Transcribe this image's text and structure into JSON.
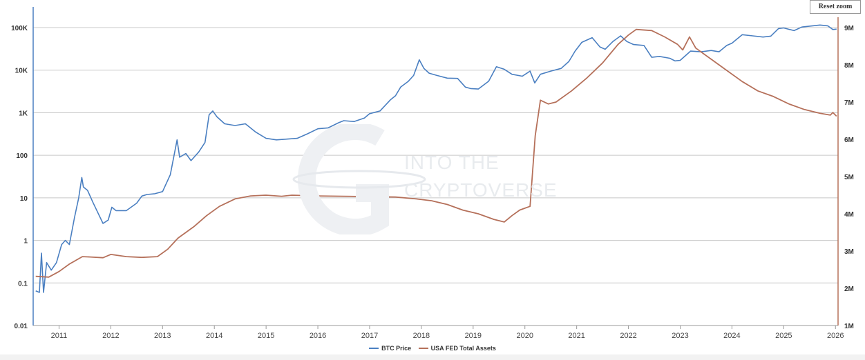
{
  "ui": {
    "reset_zoom_label": "Reset zoom",
    "watermark_line1": "INTO THE",
    "watermark_line2": "CRYPTOVERSE"
  },
  "chart_data": {
    "type": "line",
    "title": "",
    "x_ticks": [
      "2011",
      "2012",
      "2013",
      "2014",
      "2015",
      "2016",
      "2017",
      "2018",
      "2019",
      "2020",
      "2021",
      "2022",
      "2023",
      "2024",
      "2025",
      "2026"
    ],
    "left_axis": {
      "scale": "log",
      "ticks": [
        "0.01",
        "0.1",
        "1",
        "10",
        "100",
        "1K",
        "10K",
        "100K"
      ],
      "ylim": [
        0.01,
        100000
      ]
    },
    "right_axis": {
      "scale": "linear",
      "unit": "M",
      "ticks": [
        "1M",
        "2M",
        "3M",
        "4M",
        "5M",
        "6M",
        "7M",
        "8M",
        "9M"
      ],
      "ylim": [
        1000000,
        9000000
      ]
    },
    "grid": true,
    "legend_position": "bottom-center",
    "colors": {
      "btc": "#4a7fc1",
      "fed": "#b5705a"
    },
    "series": [
      {
        "name": "BTC Price",
        "axis": "left",
        "points": [
          [
            2010.55,
            0.065
          ],
          [
            2010.62,
            0.06
          ],
          [
            2010.66,
            0.5
          ],
          [
            2010.7,
            0.06
          ],
          [
            2010.76,
            0.3
          ],
          [
            2010.85,
            0.2
          ],
          [
            2010.95,
            0.3
          ],
          [
            2011.05,
            0.8
          ],
          [
            2011.12,
            1.0
          ],
          [
            2011.2,
            0.8
          ],
          [
            2011.3,
            3.5
          ],
          [
            2011.38,
            10
          ],
          [
            2011.44,
            30
          ],
          [
            2011.47,
            18
          ],
          [
            2011.55,
            15
          ],
          [
            2011.65,
            8
          ],
          [
            2011.75,
            4.5
          ],
          [
            2011.85,
            2.5
          ],
          [
            2011.95,
            3
          ],
          [
            2012.02,
            6
          ],
          [
            2012.1,
            5
          ],
          [
            2012.3,
            5
          ],
          [
            2012.5,
            7.5
          ],
          [
            2012.6,
            11
          ],
          [
            2012.7,
            12
          ],
          [
            2012.85,
            12.5
          ],
          [
            2013.0,
            14
          ],
          [
            2013.15,
            35
          ],
          [
            2013.28,
            230
          ],
          [
            2013.33,
            90
          ],
          [
            2013.45,
            110
          ],
          [
            2013.55,
            75
          ],
          [
            2013.7,
            120
          ],
          [
            2013.82,
            200
          ],
          [
            2013.9,
            900
          ],
          [
            2013.97,
            1100
          ],
          [
            2014.05,
            800
          ],
          [
            2014.2,
            550
          ],
          [
            2014.4,
            500
          ],
          [
            2014.6,
            550
          ],
          [
            2014.8,
            350
          ],
          [
            2015.0,
            250
          ],
          [
            2015.2,
            230
          ],
          [
            2015.4,
            240
          ],
          [
            2015.6,
            250
          ],
          [
            2015.8,
            320
          ],
          [
            2016.0,
            420
          ],
          [
            2016.2,
            440
          ],
          [
            2016.4,
            580
          ],
          [
            2016.5,
            650
          ],
          [
            2016.7,
            620
          ],
          [
            2016.9,
            750
          ],
          [
            2017.0,
            950
          ],
          [
            2017.2,
            1100
          ],
          [
            2017.4,
            2000
          ],
          [
            2017.5,
            2500
          ],
          [
            2017.6,
            4000
          ],
          [
            2017.75,
            5500
          ],
          [
            2017.85,
            7500
          ],
          [
            2017.96,
            17500
          ],
          [
            2018.05,
            11000
          ],
          [
            2018.15,
            8500
          ],
          [
            2018.3,
            7500
          ],
          [
            2018.5,
            6500
          ],
          [
            2018.7,
            6400
          ],
          [
            2018.85,
            4000
          ],
          [
            2018.95,
            3700
          ],
          [
            2019.1,
            3600
          ],
          [
            2019.3,
            5500
          ],
          [
            2019.45,
            12000
          ],
          [
            2019.6,
            10500
          ],
          [
            2019.75,
            8000
          ],
          [
            2019.95,
            7200
          ],
          [
            2020.1,
            9500
          ],
          [
            2020.19,
            5000
          ],
          [
            2020.3,
            8000
          ],
          [
            2020.5,
            9500
          ],
          [
            2020.7,
            11000
          ],
          [
            2020.85,
            16000
          ],
          [
            2020.97,
            28000
          ],
          [
            2021.1,
            45000
          ],
          [
            2021.3,
            58000
          ],
          [
            2021.45,
            35000
          ],
          [
            2021.55,
            31000
          ],
          [
            2021.7,
            47000
          ],
          [
            2021.85,
            64000
          ],
          [
            2021.97,
            47000
          ],
          [
            2022.1,
            40000
          ],
          [
            2022.3,
            38000
          ],
          [
            2022.45,
            20000
          ],
          [
            2022.6,
            21000
          ],
          [
            2022.8,
            19000
          ],
          [
            2022.9,
            16500
          ],
          [
            2023.0,
            17000
          ],
          [
            2023.2,
            28000
          ],
          [
            2023.4,
            27000
          ],
          [
            2023.6,
            29000
          ],
          [
            2023.75,
            27000
          ],
          [
            2023.9,
            38000
          ],
          [
            2024.0,
            43000
          ],
          [
            2024.2,
            68000
          ],
          [
            2024.4,
            64000
          ],
          [
            2024.6,
            60000
          ],
          [
            2024.75,
            63000
          ],
          [
            2024.9,
            95000
          ],
          [
            2025.0,
            98000
          ],
          [
            2025.2,
            85000
          ],
          [
            2025.35,
            103000
          ],
          [
            2025.5,
            108000
          ],
          [
            2025.7,
            115000
          ],
          [
            2025.85,
            110000
          ],
          [
            2025.95,
            90000
          ],
          [
            2026.02,
            92000
          ]
        ]
      },
      {
        "name": "USA FED Total Assets",
        "axis": "right",
        "points": [
          [
            2010.55,
            2320000
          ],
          [
            2010.8,
            2300000
          ],
          [
            2011.0,
            2450000
          ],
          [
            2011.2,
            2650000
          ],
          [
            2011.45,
            2850000
          ],
          [
            2011.6,
            2840000
          ],
          [
            2011.85,
            2820000
          ],
          [
            2012.0,
            2910000
          ],
          [
            2012.3,
            2850000
          ],
          [
            2012.6,
            2830000
          ],
          [
            2012.9,
            2850000
          ],
          [
            2013.1,
            3050000
          ],
          [
            2013.3,
            3350000
          ],
          [
            2013.6,
            3650000
          ],
          [
            2013.85,
            3950000
          ],
          [
            2014.1,
            4200000
          ],
          [
            2014.4,
            4400000
          ],
          [
            2014.7,
            4480000
          ],
          [
            2015.0,
            4500000
          ],
          [
            2015.3,
            4470000
          ],
          [
            2015.5,
            4500000
          ],
          [
            2016.0,
            4480000
          ],
          [
            2016.5,
            4470000
          ],
          [
            2017.0,
            4460000
          ],
          [
            2017.5,
            4450000
          ],
          [
            2017.9,
            4400000
          ],
          [
            2018.2,
            4350000
          ],
          [
            2018.5,
            4250000
          ],
          [
            2018.8,
            4100000
          ],
          [
            2019.1,
            4000000
          ],
          [
            2019.4,
            3850000
          ],
          [
            2019.6,
            3780000
          ],
          [
            2019.75,
            3950000
          ],
          [
            2019.9,
            4100000
          ],
          [
            2020.0,
            4150000
          ],
          [
            2020.1,
            4200000
          ],
          [
            2020.2,
            6100000
          ],
          [
            2020.3,
            7050000
          ],
          [
            2020.45,
            6950000
          ],
          [
            2020.6,
            7000000
          ],
          [
            2020.9,
            7300000
          ],
          [
            2021.2,
            7650000
          ],
          [
            2021.5,
            8050000
          ],
          [
            2021.8,
            8550000
          ],
          [
            2022.0,
            8800000
          ],
          [
            2022.15,
            8950000
          ],
          [
            2022.45,
            8920000
          ],
          [
            2022.7,
            8750000
          ],
          [
            2022.95,
            8550000
          ],
          [
            2023.05,
            8400000
          ],
          [
            2023.18,
            8750000
          ],
          [
            2023.3,
            8450000
          ],
          [
            2023.6,
            8150000
          ],
          [
            2023.9,
            7850000
          ],
          [
            2024.2,
            7550000
          ],
          [
            2024.5,
            7300000
          ],
          [
            2024.8,
            7150000
          ],
          [
            2025.1,
            6950000
          ],
          [
            2025.4,
            6800000
          ],
          [
            2025.7,
            6700000
          ],
          [
            2025.9,
            6650000
          ],
          [
            2025.95,
            6720000
          ],
          [
            2026.02,
            6620000
          ]
        ]
      }
    ]
  }
}
